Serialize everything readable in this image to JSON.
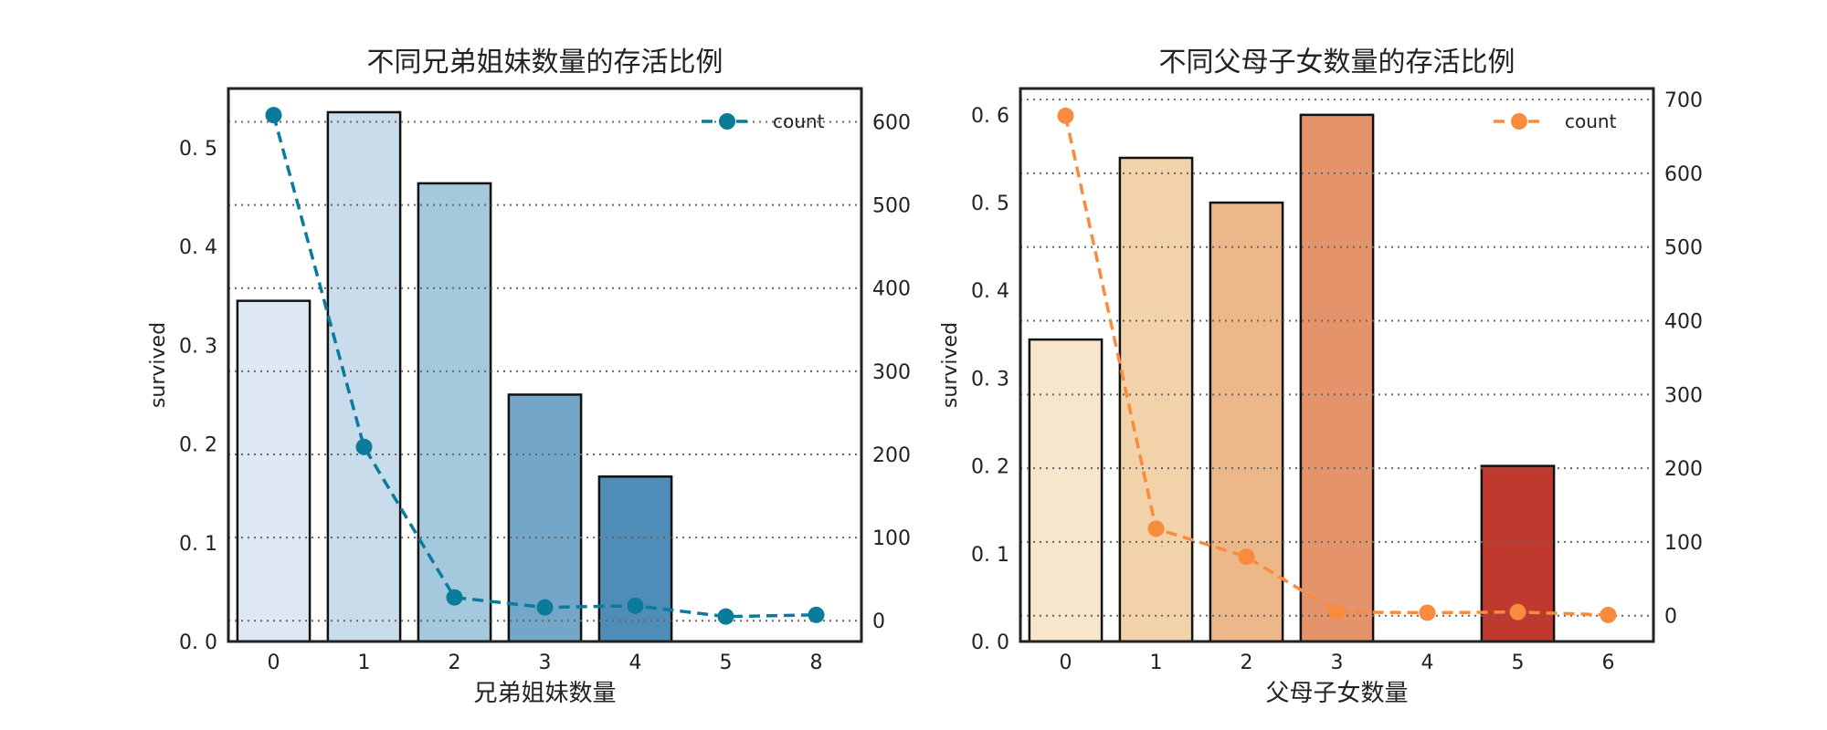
{
  "chart_data": [
    {
      "type": "bar",
      "title": "不同兄弟姐妹数量的存活比例",
      "xlabel": "兄弟姐妹数量",
      "ylabel": "survived",
      "categories": [
        "0",
        "1",
        "2",
        "3",
        "4",
        "5",
        "8"
      ],
      "values": [
        0.345,
        0.536,
        0.464,
        0.25,
        0.167,
        0,
        0
      ],
      "bar_colors": [
        "#dde8f3",
        "#c9dcec",
        "#a4c8dc",
        "#73a6c8",
        "#4f8db8",
        "#ffffff",
        "#ffffff"
      ],
      "ylim": [
        0,
        0.56
      ],
      "yticks": [
        0.0,
        0.1,
        0.2,
        0.3,
        0.4,
        0.5
      ],
      "ytick_labels": [
        "0. 0",
        "0. 1",
        "0. 2",
        "0. 3",
        "0. 4",
        "0. 5"
      ],
      "secondary": {
        "name": "count",
        "values": [
          608,
          209,
          28,
          16,
          18,
          5,
          7
        ],
        "ylim": [
          -25,
          640
        ],
        "yticks": [
          0,
          100,
          200,
          300,
          400,
          500,
          600
        ],
        "ytick_labels": [
          "0",
          "100",
          "200",
          "300",
          "400",
          "500",
          "600"
        ],
        "color": "#0b7b9b"
      },
      "grid": true,
      "legend_position": "top-right"
    },
    {
      "type": "bar",
      "title": "不同父母子女数量的存活比例",
      "xlabel": "父母子女数量",
      "ylabel": "survived",
      "categories": [
        "0",
        "1",
        "2",
        "3",
        "4",
        "5",
        "6"
      ],
      "values": [
        0.344,
        0.551,
        0.5,
        0.6,
        0,
        0.2,
        0
      ],
      "bar_colors": [
        "#f7e5cc",
        "#f2d2a8",
        "#ecb88a",
        "#e5936a",
        "#ffffff",
        "#c0392f",
        "#ffffff"
      ],
      "ylim": [
        0,
        0.63
      ],
      "yticks": [
        0.0,
        0.1,
        0.2,
        0.3,
        0.4,
        0.5,
        0.6
      ],
      "ytick_labels": [
        "0. 0",
        "0. 1",
        "0. 2",
        "0. 3",
        "0. 4",
        "0. 5",
        "0. 6"
      ],
      "secondary": {
        "name": "count",
        "values": [
          678,
          118,
          80,
          5,
          4,
          5,
          1
        ],
        "ylim": [
          -35,
          715
        ],
        "yticks": [
          0,
          100,
          200,
          300,
          400,
          500,
          600,
          700
        ],
        "ytick_labels": [
          "0",
          "100",
          "200",
          "300",
          "400",
          "500",
          "600",
          "700"
        ],
        "color": "#f98b3e"
      },
      "grid": true,
      "legend_position": "top-right"
    }
  ]
}
